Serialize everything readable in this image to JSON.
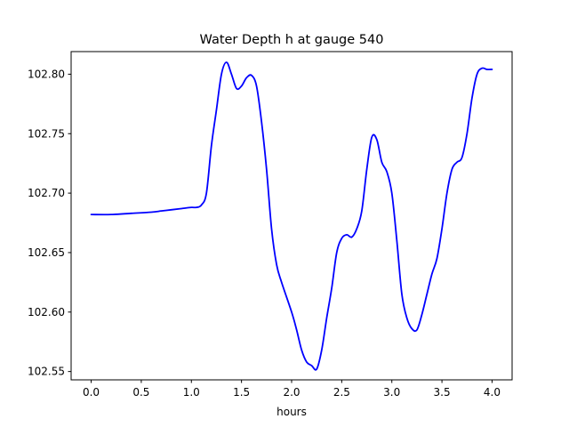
{
  "chart_data": {
    "type": "line",
    "title": "Water Depth h at gauge 540",
    "xlabel": "hours",
    "ylabel": "",
    "xlim": [
      -0.2,
      4.2
    ],
    "ylim": [
      102.543,
      102.819
    ],
    "grid": false,
    "xticks": [
      0.0,
      0.5,
      1.0,
      1.5,
      2.0,
      2.5,
      3.0,
      3.5,
      4.0
    ],
    "xtick_labels": [
      "0.0",
      "0.5",
      "1.0",
      "1.5",
      "2.0",
      "2.5",
      "3.0",
      "3.5",
      "4.0"
    ],
    "yticks": [
      102.55,
      102.6,
      102.65,
      102.7,
      102.75,
      102.8
    ],
    "ytick_labels": [
      "102.55",
      "102.60",
      "102.65",
      "102.70",
      "102.75",
      "102.80"
    ],
    "series": [
      {
        "color": "#0000ff",
        "x": [
          0.0,
          0.2,
          0.4,
          0.6,
          0.7,
          0.8,
          0.9,
          1.0,
          1.05,
          1.1,
          1.15,
          1.2,
          1.25,
          1.3,
          1.35,
          1.4,
          1.45,
          1.5,
          1.55,
          1.6,
          1.65,
          1.7,
          1.75,
          1.8,
          1.85,
          1.9,
          2.0,
          2.05,
          2.1,
          2.15,
          2.2,
          2.25,
          2.3,
          2.35,
          2.4,
          2.45,
          2.5,
          2.55,
          2.6,
          2.65,
          2.7,
          2.75,
          2.8,
          2.85,
          2.9,
          2.95,
          3.0,
          3.05,
          3.1,
          3.15,
          3.2,
          3.25,
          3.3,
          3.35,
          3.4,
          3.45,
          3.5,
          3.55,
          3.6,
          3.65,
          3.7,
          3.75,
          3.8,
          3.85,
          3.9,
          3.95,
          4.0
        ],
        "y": [
          102.682,
          102.682,
          102.683,
          102.684,
          102.685,
          102.686,
          102.687,
          102.688,
          102.688,
          102.69,
          102.7,
          102.74,
          102.77,
          102.8,
          102.81,
          102.8,
          102.788,
          102.79,
          102.797,
          102.799,
          102.79,
          102.76,
          102.72,
          102.67,
          102.64,
          102.625,
          102.6,
          102.585,
          102.568,
          102.558,
          102.555,
          102.552,
          102.568,
          102.595,
          102.62,
          102.65,
          102.662,
          102.665,
          102.663,
          102.67,
          102.685,
          102.72,
          102.747,
          102.745,
          102.726,
          102.718,
          102.7,
          102.66,
          102.615,
          102.595,
          102.586,
          102.585,
          102.598,
          102.615,
          102.632,
          102.645,
          102.67,
          102.7,
          102.72,
          102.726,
          102.73,
          102.75,
          102.78,
          102.8,
          102.805,
          102.804,
          102.804
        ]
      }
    ]
  }
}
